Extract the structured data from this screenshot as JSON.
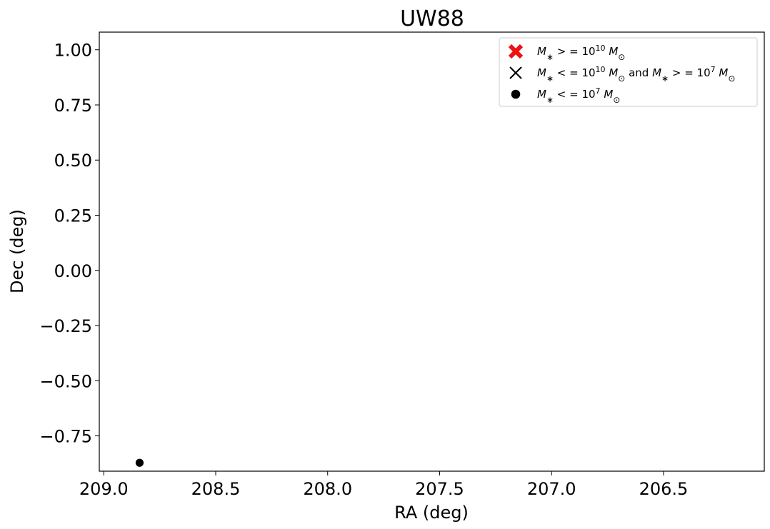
{
  "chart_data": {
    "type": "scatter",
    "title": "UW88",
    "xlabel": "RA (deg)",
    "ylabel": "Dec (deg)",
    "xlim": [
      209.02,
      206.05
    ],
    "ylim": [
      -0.91,
      1.08
    ],
    "x_ticks": [
      209.0,
      208.5,
      208.0,
      207.5,
      207.0,
      206.5
    ],
    "x_tick_labels": [
      "209.0",
      "208.5",
      "208.0",
      "207.5",
      "207.0",
      "206.5"
    ],
    "y_ticks": [
      1.0,
      0.75,
      0.5,
      0.25,
      0.0,
      -0.25,
      -0.5,
      -0.75
    ],
    "y_tick_labels": [
      "1.00",
      "0.75",
      "0.50",
      "0.25",
      "0.00",
      "−0.25",
      "−0.50",
      "−0.75"
    ],
    "grid": false,
    "legend": {
      "placement": "top-right",
      "entries": [
        {
          "marker": "filled-x",
          "color": "#ee1111",
          "label_parts": [
            "M",
            "∗",
            " > = 10",
            "10",
            " M",
            "⊙"
          ]
        },
        {
          "marker": "x",
          "color": "#000000",
          "label_parts": [
            "M",
            "∗",
            " < = 10",
            "10",
            " M",
            "⊙",
            " and ",
            "M",
            "∗",
            " > = 10",
            "7",
            " M",
            "⊙"
          ]
        },
        {
          "marker": "circle",
          "color": "#000000",
          "label_parts": [
            "M",
            "∗",
            " < = 10",
            "7",
            " M",
            "⊙"
          ]
        }
      ]
    },
    "series": [
      {
        "marker": "filled-x",
        "color": "#ee1111",
        "points": []
      },
      {
        "marker": "x",
        "color": "#000000",
        "points": []
      },
      {
        "marker": "circle",
        "color": "#000000",
        "points": [
          {
            "x": 208.84,
            "y": -0.872
          }
        ]
      }
    ]
  }
}
